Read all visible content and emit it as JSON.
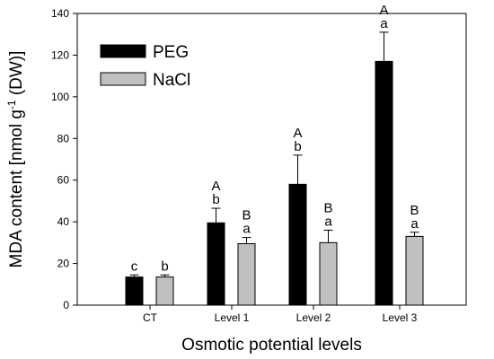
{
  "chart_data": {
    "type": "bar",
    "categories": [
      "CT",
      "Level 1",
      "Level 2",
      "Level 3"
    ],
    "series": [
      {
        "name": "PEG",
        "color": "#000000",
        "values": [
          13.5,
          39.5,
          58,
          117
        ],
        "errors": [
          1,
          7,
          14,
          14
        ],
        "labels": [
          [
            "c"
          ],
          [
            "A",
            "b"
          ],
          [
            "A",
            "b"
          ],
          [
            "A",
            "a"
          ]
        ]
      },
      {
        "name": "NaCl",
        "color": "#c0c0c0",
        "values": [
          13.5,
          29.5,
          30,
          33
        ],
        "errors": [
          1,
          3,
          6,
          2
        ],
        "labels": [
          [
            "b"
          ],
          [
            "B",
            "a"
          ],
          [
            "B",
            "a"
          ],
          [
            "B",
            "a"
          ]
        ]
      }
    ],
    "xlabel": "Osmotic potential levels",
    "ylabel": "MDA content [nmol g-1 (DW)]",
    "ylabel_parts": {
      "pre": "MDA content [nmol g",
      "sup": "-1",
      "post": " (DW)]"
    },
    "ylim": [
      0,
      140
    ],
    "yticks": [
      0,
      20,
      40,
      60,
      80,
      100,
      120,
      140
    ],
    "legend_position": "top-left",
    "grid": false
  }
}
